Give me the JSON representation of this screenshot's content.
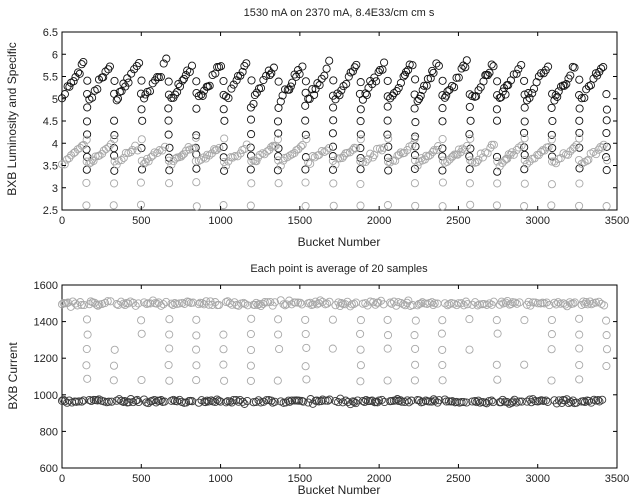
{
  "chart_data": [
    {
      "type": "scatter",
      "title": "1530 mA on 2370 mA, 8.4E33/cm cm s",
      "xlabel": "Bucket Number",
      "ylabel": "BXB Luminosity and Specific",
      "xlim": [
        0,
        3500
      ],
      "ylim": [
        2.5,
        6.5
      ],
      "xticks": [
        0,
        500,
        1000,
        1500,
        2000,
        2500,
        3000,
        3500
      ],
      "yticks": [
        2.5,
        3,
        3.5,
        4,
        4.5,
        5,
        5.5,
        6,
        6.5
      ],
      "xticklabels": [
        "0",
        "500",
        "1000",
        "1500",
        "2000",
        "2500",
        "3000",
        "3500"
      ],
      "yticklabels": [
        "2.5",
        "3",
        "3.5",
        "4",
        "4.5",
        "5",
        "5.5",
        "6",
        "6.5"
      ],
      "grid": false,
      "marker": "open-circle",
      "x_range": [
        0,
        3450
      ],
      "train_count": 20,
      "series": [
        {
          "color": "#111111",
          "band_mean": 5.3,
          "band_spread": 0.45,
          "sawtooth_start": 5.0,
          "sawtooth_end": 5.8,
          "gap_values": [
            3.4,
            3.7,
            3.9,
            4.2,
            4.5,
            4.8,
            5.1,
            5.4
          ],
          "min": 3.4,
          "max": 6.1
        },
        {
          "color": "#a8a8a8",
          "band_mean": 3.75,
          "band_spread": 0.3,
          "sawtooth_start": 3.55,
          "sawtooth_end": 3.95,
          "gap_values": [
            2.6,
            3.1,
            3.6,
            4.1
          ],
          "min": 2.6,
          "max": 4.3
        }
      ]
    },
    {
      "type": "scatter",
      "title": "Each point is average of 20 samples",
      "xlabel": "Bucket Number",
      "ylabel": "BXB Current",
      "xlim": [
        0,
        3500
      ],
      "ylim": [
        600,
        1600
      ],
      "xticks": [
        0,
        500,
        1000,
        1500,
        2000,
        2500,
        3000,
        3500
      ],
      "yticks": [
        600,
        800,
        1000,
        1200,
        1400,
        1600
      ],
      "xticklabels": [
        "0",
        "500",
        "1000",
        "1500",
        "2000",
        "2500",
        "3000",
        "3500"
      ],
      "yticklabels": [
        "600",
        "800",
        "1000",
        "1200",
        "1400",
        "1600"
      ],
      "grid": false,
      "marker": "open-circle",
      "x_range": [
        0,
        3450
      ],
      "train_count": 20,
      "series": [
        {
          "color": "#a8a8a8",
          "band_mean": 1500,
          "band_spread": 45,
          "gap_values": [
            1080,
            1160,
            1250,
            1330,
            1410
          ],
          "min": 1080,
          "max": 1580
        },
        {
          "color": "#3a3a3a",
          "band_mean": 965,
          "band_spread": 35,
          "gap_values": [],
          "min": 920,
          "max": 1000
        }
      ]
    }
  ]
}
